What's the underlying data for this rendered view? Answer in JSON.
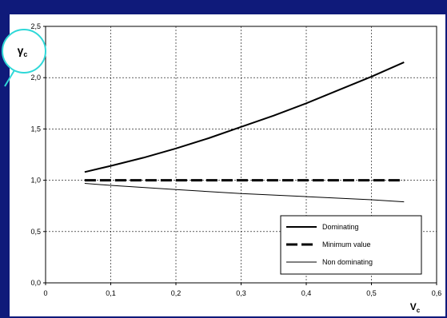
{
  "chart_data": {
    "type": "line",
    "xlabel": "V",
    "xlabel_sub": "c",
    "ylabel": "γ",
    "ylabel_sub": "c",
    "xlim": [
      0,
      0.6
    ],
    "ylim": [
      0,
      2.5
    ],
    "x_ticks": [
      "0",
      "0,1",
      "0,2",
      "0,3",
      "0,4",
      "0,5",
      "0,6"
    ],
    "y_ticks": [
      "0,0",
      "0,5",
      "1,0",
      "1,5",
      "2,0",
      "2,5"
    ],
    "grid": true,
    "legend_position": "bottom-right",
    "series": [
      {
        "name": "Dominating",
        "style": "solid-thick",
        "x": [
          0.06,
          0.1,
          0.15,
          0.2,
          0.25,
          0.3,
          0.35,
          0.4,
          0.45,
          0.5,
          0.55
        ],
        "y": [
          1.08,
          1.14,
          1.22,
          1.31,
          1.41,
          1.52,
          1.63,
          1.75,
          1.88,
          2.01,
          2.15
        ]
      },
      {
        "name": "Minimum value",
        "style": "dashed-thick",
        "x": [
          0.06,
          0.55
        ],
        "y": [
          1.0,
          1.0
        ]
      },
      {
        "name": "Non dominating",
        "style": "solid-thin",
        "x": [
          0.06,
          0.1,
          0.2,
          0.3,
          0.4,
          0.5,
          0.55
        ],
        "y": [
          0.97,
          0.95,
          0.91,
          0.87,
          0.84,
          0.81,
          0.79
        ]
      }
    ]
  },
  "colors": {
    "background": "#0f1a7a",
    "plot_area": "#ffffff",
    "lines": "#000000",
    "ylabel_circle": "#2fd8d8"
  }
}
